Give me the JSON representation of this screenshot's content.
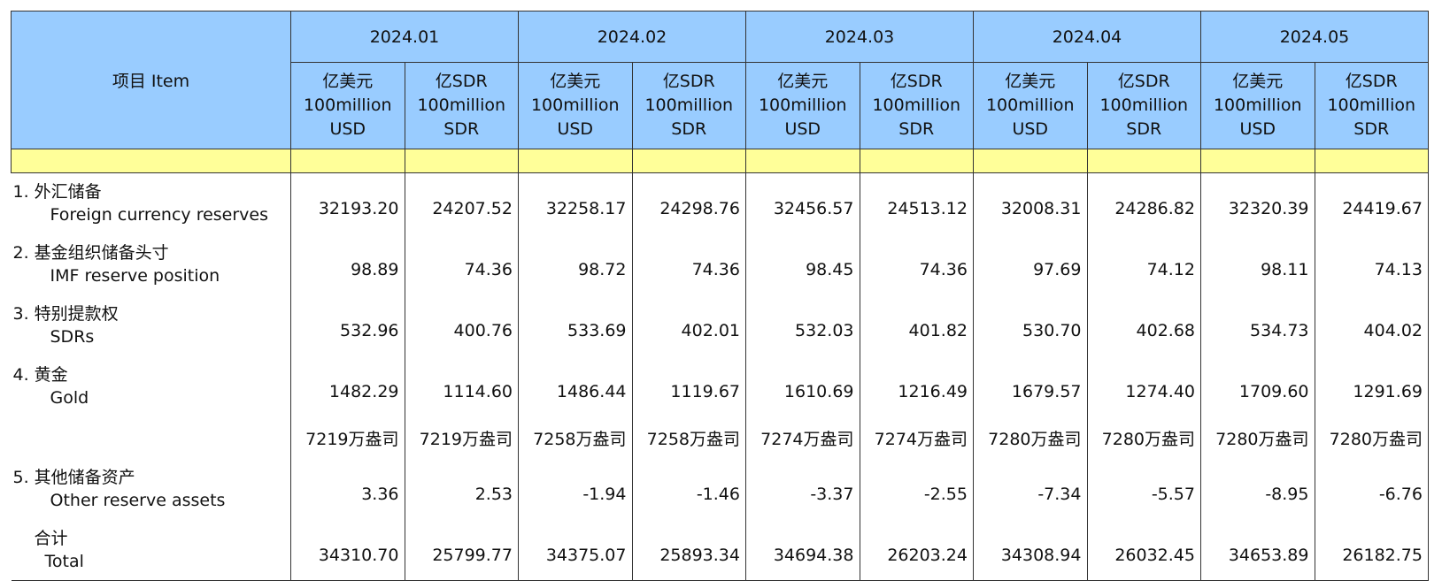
{
  "table": {
    "header": {
      "item": "项目 Item",
      "months": [
        "2024.01",
        "2024.02",
        "2024.03",
        "2024.04",
        "2024.05"
      ],
      "units": [
        [
          "亿美元",
          "100million",
          "USD"
        ],
        [
          "亿SDR",
          "100million",
          "SDR"
        ]
      ]
    },
    "rows": [
      {
        "label_cn": "1. 外汇储备",
        "label_en": "Foreign currency reserves",
        "values": [
          "32193.20",
          "24207.52",
          "32258.17",
          "24298.76",
          "32456.57",
          "24513.12",
          "32008.31",
          "24286.82",
          "32320.39",
          "24419.67"
        ]
      },
      {
        "label_cn": "2. 基金组织储备头寸",
        "label_en": "IMF reserve position",
        "values": [
          "98.89",
          "74.36",
          "98.72",
          "74.36",
          "98.45",
          "74.36",
          "97.69",
          "74.12",
          "98.11",
          "74.13"
        ]
      },
      {
        "label_cn": "3. 特别提款权",
        "label_en": "SDRs",
        "values": [
          "532.96",
          "400.76",
          "533.69",
          "402.01",
          "532.03",
          "401.82",
          "530.70",
          "402.68",
          "534.73",
          "404.02"
        ]
      },
      {
        "label_cn": "4. 黄金",
        "label_en": "Gold",
        "values": [
          "1482.29",
          "1114.60",
          "1486.44",
          "1119.67",
          "1610.69",
          "1216.49",
          "1679.57",
          "1274.40",
          "1709.60",
          "1291.69"
        ]
      },
      {
        "values": [
          "7219万盎司",
          "7219万盎司",
          "7258万盎司",
          "7258万盎司",
          "7274万盎司",
          "7274万盎司",
          "7280万盎司",
          "7280万盎司",
          "7280万盎司",
          "7280万盎司"
        ]
      },
      {
        "label_cn": "5. 其他储备资产",
        "label_en": "Other reserve assets",
        "values": [
          "3.36",
          "2.53",
          "-1.94",
          "-1.46",
          "-3.37",
          "-2.55",
          "-7.34",
          "-5.57",
          "-8.95",
          "-6.76"
        ]
      },
      {
        "label_cn": "合计",
        "label_en": "Total",
        "values": [
          "34310.70",
          "25799.77",
          "34375.07",
          "25893.34",
          "34694.38",
          "26203.24",
          "34308.94",
          "26032.45",
          "34653.89",
          "26182.75"
        ]
      }
    ]
  }
}
